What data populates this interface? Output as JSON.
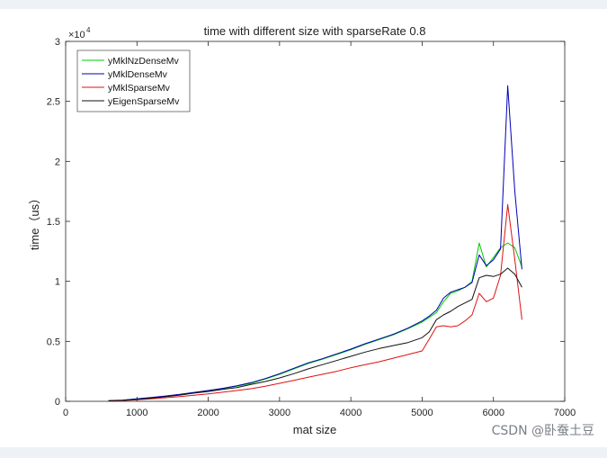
{
  "chart_data": {
    "type": "line",
    "title": "time with different size with sparseRate 0.8",
    "xlabel": "mat size",
    "ylabel": "time（us）",
    "y_exponent_label": "×10",
    "y_exponent": "4",
    "xlim": [
      0,
      7000
    ],
    "ylim": [
      0,
      30000
    ],
    "xticks": [
      0,
      1000,
      2000,
      3000,
      4000,
      5000,
      6000,
      7000
    ],
    "xtick_labels": [
      "0",
      "1000",
      "2000",
      "3000",
      "4000",
      "5000",
      "6000",
      "7000"
    ],
    "yticks": [
      0,
      5000,
      10000,
      15000,
      20000,
      25000,
      30000
    ],
    "ytick_labels": [
      "0",
      "0.5",
      "1",
      "1.5",
      "2",
      "2.5",
      "3"
    ],
    "legend_position": "top-left",
    "grid": false,
    "x": [
      600,
      800,
      1000,
      1200,
      1400,
      1600,
      1800,
      2000,
      2200,
      2400,
      2600,
      2800,
      3000,
      3200,
      3400,
      3600,
      3800,
      4000,
      4200,
      4400,
      4600,
      4800,
      5000,
      5100,
      5200,
      5300,
      5400,
      5500,
      5600,
      5700,
      5800,
      5900,
      6000,
      6100,
      6200,
      6300,
      6400
    ],
    "series": [
      {
        "name": "yMklNzDenseMv",
        "color": "#00cc00",
        "values": [
          50,
          100,
          200,
          300,
          420,
          560,
          720,
          900,
          1050,
          1250,
          1500,
          1850,
          2250,
          2700,
          3150,
          3500,
          3900,
          4300,
          4750,
          5150,
          5550,
          6050,
          6600,
          7000,
          7400,
          8300,
          9000,
          9200,
          9500,
          10000,
          13200,
          11200,
          12000,
          12800,
          13200,
          12800,
          11200
        ]
      },
      {
        "name": "yMklDenseMv",
        "color": "#0000b8",
        "values": [
          50,
          100,
          210,
          320,
          440,
          580,
          740,
          900,
          1080,
          1300,
          1550,
          1900,
          2300,
          2750,
          3200,
          3550,
          3950,
          4350,
          4800,
          5200,
          5600,
          6100,
          6700,
          7100,
          7600,
          8600,
          9100,
          9300,
          9500,
          9900,
          12200,
          11300,
          11800,
          12700,
          26300,
          17500,
          11000
        ]
      },
      {
        "name": "yMklSparseMv",
        "color": "#e01010",
        "values": [
          30,
          70,
          130,
          210,
          300,
          400,
          500,
          620,
          760,
          900,
          1050,
          1250,
          1500,
          1750,
          2000,
          2250,
          2500,
          2800,
          3050,
          3300,
          3600,
          3900,
          4200,
          5200,
          6200,
          6300,
          6200,
          6300,
          6700,
          7200,
          9000,
          8300,
          8600,
          10500,
          16400,
          11800,
          6800
        ]
      },
      {
        "name": "yEigenSparseMv",
        "color": "#111111",
        "values": [
          40,
          80,
          160,
          260,
          380,
          520,
          680,
          820,
          1000,
          1150,
          1400,
          1650,
          1950,
          2300,
          2700,
          3050,
          3400,
          3750,
          4100,
          4400,
          4650,
          4900,
          5300,
          5800,
          6800,
          7200,
          7500,
          7900,
          8200,
          8500,
          10300,
          10500,
          10400,
          10600,
          11100,
          10600,
          9500
        ]
      }
    ]
  },
  "watermark": "CSDN @卧蚕土豆"
}
